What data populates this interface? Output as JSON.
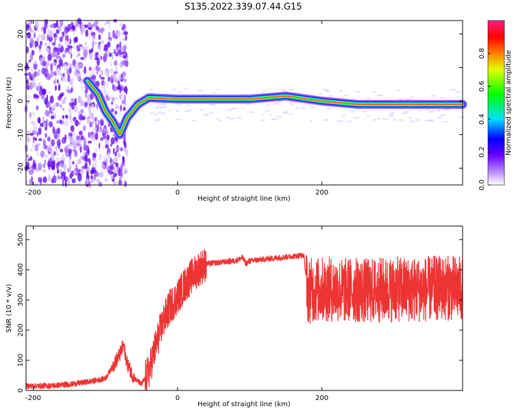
{
  "title": "S135.2022.339.07.44.G15",
  "chart_data": [
    {
      "type": "heatmap",
      "xlabel": "Height of straight line (km)",
      "ylabel": "Frequency (Hz)",
      "xlim": [
        -210,
        395
      ],
      "ylim": [
        -25,
        24
      ],
      "xticks": [
        -200,
        0,
        200
      ],
      "yticks": [
        -20,
        -10,
        0,
        10,
        20
      ],
      "colorbar": {
        "label": "Normalized spectral amplitude",
        "range": [
          0,
          1
        ],
        "ticks": [
          0.0,
          0.2,
          0.4,
          0.6,
          0.8
        ],
        "colors": [
          "#ffffff",
          "#c8a0ff",
          "#8a00ff",
          "#0000ff",
          "#00ffff",
          "#00ff00",
          "#ffff00",
          "#ff8000",
          "#ff0000",
          "#ff00a0"
        ]
      },
      "ridge": [
        {
          "x": -125,
          "y": 6
        },
        {
          "x": -110,
          "y": 2
        },
        {
          "x": -100,
          "y": -3
        },
        {
          "x": -90,
          "y": -6
        },
        {
          "x": -80,
          "y": -10
        },
        {
          "x": -70,
          "y": -5
        },
        {
          "x": -55,
          "y": -1
        },
        {
          "x": -40,
          "y": 1
        },
        {
          "x": 0,
          "y": 0.6
        },
        {
          "x": 100,
          "y": 0.6
        },
        {
          "x": 150,
          "y": 1.5
        },
        {
          "x": 200,
          "y": 0
        },
        {
          "x": 250,
          "y": -1
        },
        {
          "x": 395,
          "y": -1
        }
      ]
    },
    {
      "type": "line",
      "xlabel": "Height of straight line (km)",
      "ylabel": "SNR (10 * v/v)",
      "xlim": [
        -210,
        395
      ],
      "ylim": [
        0,
        545
      ],
      "xticks": [
        -200,
        0,
        200
      ],
      "yticks": [
        0,
        100,
        200,
        300,
        400,
        500
      ],
      "color": "#ee3333",
      "series": [
        {
          "x": [
            -210,
            -180,
            -150,
            -120,
            -100,
            -90,
            -80,
            -75,
            -70,
            -60,
            -50,
            -40,
            -30,
            -20,
            -10,
            0,
            10,
            20,
            30,
            40,
            60,
            80,
            90,
            95,
            100,
            120,
            140,
            160,
            175,
            180,
            200,
            220,
            230,
            240,
            260,
            300,
            340,
            370,
            380,
            395
          ],
          "y": [
            15,
            15,
            20,
            30,
            40,
            80,
            120,
            150,
            90,
            40,
            20,
            60,
            150,
            230,
            280,
            310,
            350,
            380,
            405,
            420,
            425,
            430,
            440,
            420,
            430,
            435,
            440,
            445,
            448,
            330,
            335,
            335,
            330,
            335,
            330,
            335,
            335,
            340,
            340,
            335
          ]
        }
      ]
    }
  ]
}
